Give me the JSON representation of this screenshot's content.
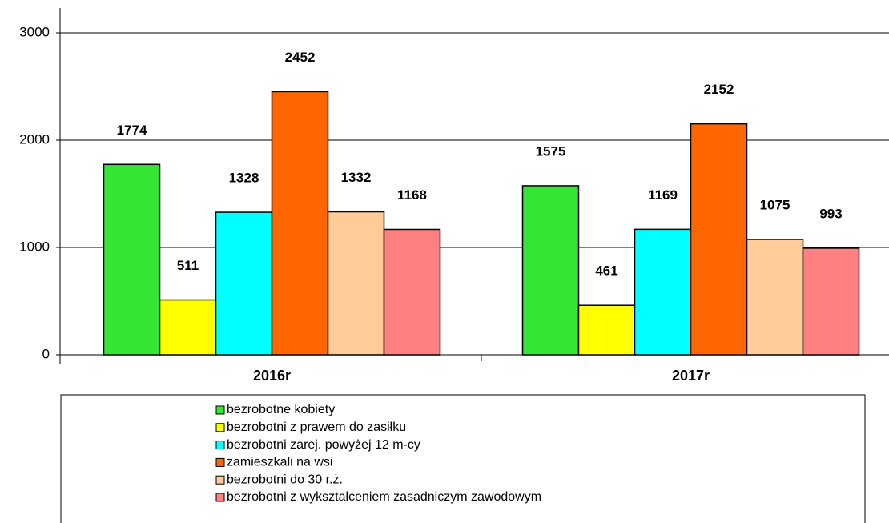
{
  "chart_data": {
    "type": "bar",
    "categories": [
      "2016r",
      "2017r"
    ],
    "series": [
      {
        "name": "bezrobotne kobiety",
        "color": "#33e633",
        "values": [
          1774,
          1575
        ]
      },
      {
        "name": "bezrobotni z prawem do zasiłku",
        "color": "#ffff00",
        "values": [
          511,
          461
        ]
      },
      {
        "name": "bezrobotni zarej. powyżej 12 m-cy",
        "color": "#00ffff",
        "values": [
          1328,
          1169
        ]
      },
      {
        "name": "zamieszkali na wsi",
        "color": "#ff6600",
        "values": [
          2452,
          2152
        ]
      },
      {
        "name": "bezrobotni do 30 r.ż.",
        "color": "#ffcc99",
        "values": [
          1332,
          1075
        ]
      },
      {
        "name": "bezrobotni z wykształceniem zasadniczym zawodowym",
        "color": "#ff8080",
        "values": [
          1168,
          993
        ]
      }
    ],
    "ylim": [
      0,
      3000
    ],
    "yticks": [
      0,
      1000,
      2000,
      3000
    ],
    "grid": true,
    "legend": "bottom"
  }
}
